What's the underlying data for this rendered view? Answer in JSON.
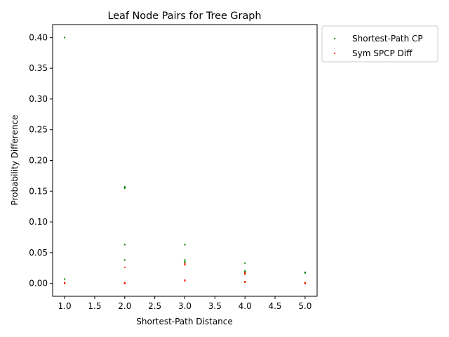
{
  "chart_data": {
    "type": "scatter",
    "title": "Leaf Node Pairs for Tree Graph",
    "xlabel": "Shortest-Path Distance",
    "ylabel": "Probability Difference",
    "xlim": [
      0.8,
      5.2
    ],
    "ylim": [
      -0.021,
      0.421
    ],
    "x_ticks": [
      1.0,
      1.5,
      2.0,
      2.5,
      3.0,
      3.5,
      4.0,
      4.5,
      5.0
    ],
    "x_tick_labels": [
      "1.0",
      "1.5",
      "2.0",
      "2.5",
      "3.0",
      "3.5",
      "4.0",
      "4.5",
      "5.0"
    ],
    "y_ticks": [
      0.0,
      0.05,
      0.1,
      0.15,
      0.2,
      0.25,
      0.3,
      0.35,
      0.4
    ],
    "y_tick_labels": [
      "0.00",
      "0.05",
      "0.10",
      "0.15",
      "0.20",
      "0.25",
      "0.30",
      "0.35",
      "0.40"
    ],
    "grid": false,
    "legend_position": "outside-top-right",
    "series": [
      {
        "name": "Shortest-Path CP",
        "color": "#008000",
        "x": [
          1,
          1,
          1,
          2,
          2,
          2,
          2,
          2,
          2,
          3,
          3,
          3,
          3,
          3,
          3,
          3,
          4,
          4,
          4,
          4,
          4,
          4,
          5,
          5,
          5
        ],
        "y": [
          0.4,
          0.007,
          0.001,
          0.157,
          0.156,
          0.155,
          0.063,
          0.038,
          0.0,
          0.063,
          0.038,
          0.035,
          0.033,
          0.031,
          0.005,
          0.004,
          0.033,
          0.02,
          0.019,
          0.018,
          0.016,
          0.002,
          0.018,
          0.017,
          0.001
        ]
      },
      {
        "name": "Sym SPCP Diff",
        "color": "#ff4500",
        "x": [
          1,
          1,
          2,
          2,
          2,
          3,
          3,
          3,
          3,
          4,
          4,
          4,
          5,
          5
        ],
        "y": [
          0.001,
          0.0,
          0.026,
          0.001,
          0.0,
          0.032,
          0.03,
          0.005,
          0.004,
          0.017,
          0.015,
          0.002,
          0.001,
          0.0
        ]
      },
      {
        "name": "",
        "color": "#ff0000",
        "x": [
          1,
          2,
          3,
          3,
          4,
          4,
          5
        ],
        "y": [
          0.0,
          0.0,
          0.031,
          0.005,
          0.016,
          0.003,
          0.0
        ]
      }
    ]
  }
}
